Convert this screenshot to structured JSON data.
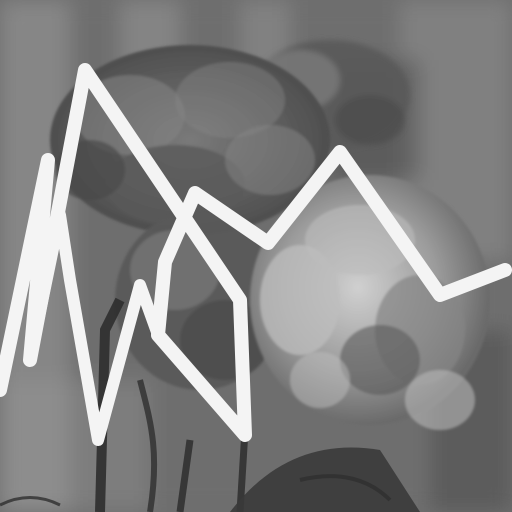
{
  "image": {
    "style": "grayscale-photo",
    "subject_icon": "carnation-flowers",
    "palette": {
      "background": "#6e6e6e",
      "background_light": "#9a9a9a",
      "background_dark": "#4a4a4a",
      "petal_dark": "#5a5a5a",
      "petal_mid": "#858585",
      "petal_light": "#bdbdbd",
      "stem": "#2e2e2e",
      "leaf": "#3a3a3a",
      "overlay_stroke": "#f4f4f4"
    }
  },
  "overlay": {
    "kind": "white-scribble-polyline",
    "icon": "scribble-icon"
  }
}
